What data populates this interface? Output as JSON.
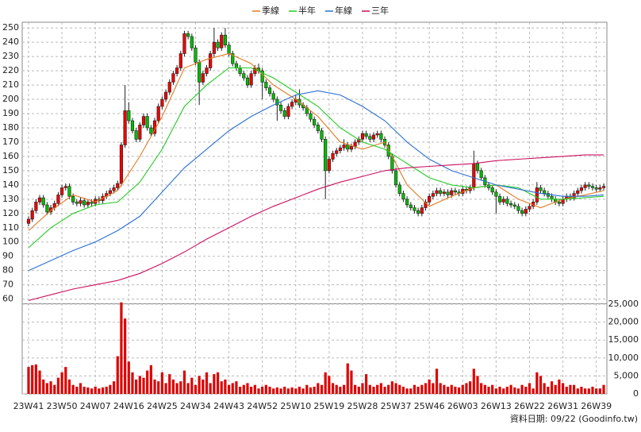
{
  "chart_data": {
    "type": "candlestick",
    "grid": true,
    "up_color": "#ee0000",
    "down_color": "#00bb00",
    "categories": [
      "23W41",
      null,
      null,
      null,
      null,
      null,
      null,
      null,
      null,
      "23W50",
      null,
      null,
      null,
      null,
      null,
      null,
      null,
      null,
      "24W07",
      null,
      null,
      null,
      null,
      null,
      null,
      null,
      null,
      "24W16",
      null,
      null,
      null,
      null,
      null,
      null,
      null,
      null,
      "24W25",
      null,
      null,
      null,
      null,
      null,
      null,
      null,
      null,
      "24W34",
      null,
      null,
      null,
      null,
      null,
      null,
      null,
      null,
      "24W43",
      null,
      null,
      null,
      null,
      null,
      null,
      null,
      null,
      "24W52",
      null,
      null,
      null,
      null,
      null,
      null,
      null,
      null,
      "25W10",
      null,
      null,
      null,
      null,
      null,
      null,
      null,
      null,
      "25W19",
      null,
      null,
      null,
      null,
      null,
      null,
      null,
      null,
      "25W28",
      null,
      null,
      null,
      null,
      null,
      null,
      null,
      null,
      "25W37",
      null,
      null,
      null,
      null,
      null,
      null,
      null,
      null,
      "25W46",
      null,
      null,
      null,
      null,
      null,
      null,
      null,
      null,
      "26W03",
      null,
      null,
      null,
      null,
      null,
      null,
      null,
      null,
      "26W13",
      null,
      null,
      null,
      null,
      null,
      null,
      null,
      null,
      "26W22",
      null,
      null,
      null,
      null,
      null,
      null,
      null,
      null,
      "26W31",
      null,
      null,
      null,
      null,
      null,
      null,
      null,
      null,
      "26W39",
      null,
      null
    ],
    "ohlc": [
      [
        113,
        118,
        111,
        116
      ],
      [
        116,
        124,
        114,
        122
      ],
      [
        122,
        130,
        120,
        128
      ],
      [
        128,
        133,
        126,
        131
      ],
      [
        131,
        133,
        124,
        126
      ],
      [
        126,
        128,
        119,
        121
      ],
      [
        121,
        126,
        119,
        124
      ],
      [
        124,
        129,
        122,
        127
      ],
      [
        127,
        135,
        125,
        133
      ],
      [
        133,
        140,
        131,
        138
      ],
      [
        138,
        141,
        136,
        139
      ],
      [
        139,
        141,
        130,
        132
      ],
      [
        132,
        134,
        126,
        128
      ],
      [
        128,
        130,
        125,
        127
      ],
      [
        127,
        131,
        125,
        129
      ],
      [
        129,
        131,
        124,
        126
      ],
      [
        126,
        130,
        124,
        128
      ],
      [
        128,
        130,
        125,
        127
      ],
      [
        127,
        132,
        125,
        130
      ],
      [
        130,
        132,
        127,
        129
      ],
      [
        129,
        134,
        127,
        132
      ],
      [
        132,
        136,
        130,
        134
      ],
      [
        134,
        138,
        132,
        136
      ],
      [
        136,
        140,
        134,
        138
      ],
      [
        138,
        143,
        136,
        141
      ],
      [
        141,
        170,
        139,
        168
      ],
      [
        168,
        210,
        166,
        192
      ],
      [
        192,
        198,
        183,
        185
      ],
      [
        185,
        187,
        176,
        178
      ],
      [
        178,
        180,
        170,
        172
      ],
      [
        172,
        184,
        170,
        182
      ],
      [
        182,
        190,
        180,
        188
      ],
      [
        188,
        190,
        178,
        180
      ],
      [
        180,
        182,
        174,
        176
      ],
      [
        176,
        187,
        174,
        185
      ],
      [
        185,
        197,
        183,
        195
      ],
      [
        195,
        202,
        193,
        200
      ],
      [
        200,
        207,
        198,
        205
      ],
      [
        205,
        214,
        203,
        212
      ],
      [
        212,
        220,
        210,
        218
      ],
      [
        218,
        224,
        216,
        222
      ],
      [
        222,
        234,
        220,
        232
      ],
      [
        232,
        248,
        230,
        246
      ],
      [
        246,
        248,
        242,
        244
      ],
      [
        244,
        246,
        234,
        236
      ],
      [
        236,
        238,
        224,
        226
      ],
      [
        226,
        228,
        196,
        212
      ],
      [
        212,
        220,
        210,
        218
      ],
      [
        218,
        224,
        216,
        222
      ],
      [
        222,
        234,
        220,
        232
      ],
      [
        232,
        250,
        230,
        240
      ],
      [
        240,
        242,
        234,
        236
      ],
      [
        236,
        247,
        234,
        245
      ],
      [
        245,
        250,
        236,
        238
      ],
      [
        238,
        240,
        230,
        232
      ],
      [
        232,
        234,
        223,
        225
      ],
      [
        225,
        227,
        220,
        222
      ],
      [
        222,
        224,
        216,
        218
      ],
      [
        218,
        220,
        213,
        215
      ],
      [
        215,
        217,
        208,
        210
      ],
      [
        210,
        220,
        208,
        218
      ],
      [
        218,
        224,
        216,
        222
      ],
      [
        222,
        225,
        218,
        220
      ],
      [
        220,
        222,
        200,
        212
      ],
      [
        212,
        214,
        206,
        208
      ],
      [
        208,
        210,
        202,
        204
      ],
      [
        204,
        206,
        198,
        200
      ],
      [
        200,
        202,
        185,
        196
      ],
      [
        196,
        198,
        190,
        192
      ],
      [
        192,
        194,
        186,
        188
      ],
      [
        188,
        197,
        186,
        195
      ],
      [
        195,
        200,
        193,
        198
      ],
      [
        198,
        203,
        196,
        200
      ],
      [
        200,
        207,
        194,
        196
      ],
      [
        196,
        198,
        192,
        194
      ],
      [
        194,
        196,
        188,
        190
      ],
      [
        190,
        192,
        184,
        186
      ],
      [
        186,
        188,
        180,
        182
      ],
      [
        182,
        184,
        176,
        178
      ],
      [
        178,
        180,
        170,
        172
      ],
      [
        172,
        174,
        130,
        150
      ],
      [
        150,
        160,
        148,
        158
      ],
      [
        158,
        164,
        156,
        162
      ],
      [
        162,
        166,
        160,
        164
      ],
      [
        164,
        168,
        162,
        166
      ],
      [
        166,
        172,
        164,
        168
      ],
      [
        168,
        170,
        163,
        165
      ],
      [
        165,
        169,
        163,
        167
      ],
      [
        167,
        172,
        165,
        170
      ],
      [
        170,
        174,
        168,
        172
      ],
      [
        172,
        178,
        170,
        176
      ],
      [
        176,
        178,
        172,
        174
      ],
      [
        174,
        176,
        170,
        172
      ],
      [
        172,
        177,
        170,
        175
      ],
      [
        175,
        178,
        173,
        176
      ],
      [
        176,
        178,
        170,
        172
      ],
      [
        172,
        174,
        166,
        168
      ],
      [
        168,
        170,
        158,
        160
      ],
      [
        160,
        162,
        148,
        150
      ],
      [
        150,
        152,
        138,
        140
      ],
      [
        140,
        142,
        132,
        134
      ],
      [
        134,
        136,
        128,
        130
      ],
      [
        130,
        132,
        124,
        126
      ],
      [
        126,
        128,
        122,
        124
      ],
      [
        124,
        126,
        120,
        122
      ],
      [
        122,
        124,
        118,
        120
      ],
      [
        120,
        126,
        118,
        124
      ],
      [
        124,
        130,
        122,
        128
      ],
      [
        128,
        134,
        126,
        132
      ],
      [
        132,
        136,
        130,
        134
      ],
      [
        134,
        138,
        132,
        136
      ],
      [
        136,
        138,
        132,
        134
      ],
      [
        134,
        137,
        132,
        135
      ],
      [
        135,
        137,
        131,
        133
      ],
      [
        133,
        138,
        131,
        136
      ],
      [
        136,
        138,
        133,
        135
      ],
      [
        135,
        137,
        132,
        134
      ],
      [
        134,
        139,
        132,
        137
      ],
      [
        137,
        139,
        134,
        136
      ],
      [
        136,
        140,
        134,
        138
      ],
      [
        138,
        164,
        136,
        155
      ],
      [
        155,
        157,
        148,
        150
      ],
      [
        150,
        152,
        143,
        145
      ],
      [
        145,
        147,
        138,
        140
      ],
      [
        140,
        142,
        136,
        138
      ],
      [
        138,
        140,
        133,
        135
      ],
      [
        135,
        137,
        120,
        132
      ],
      [
        132,
        134,
        126,
        128
      ],
      [
        128,
        132,
        126,
        130
      ],
      [
        130,
        132,
        125,
        127
      ],
      [
        127,
        129,
        124,
        126
      ],
      [
        126,
        128,
        123,
        125
      ],
      [
        125,
        127,
        120,
        122
      ],
      [
        122,
        124,
        118,
        120
      ],
      [
        120,
        125,
        118,
        123
      ],
      [
        123,
        127,
        121,
        125
      ],
      [
        125,
        130,
        123,
        128
      ],
      [
        128,
        142,
        126,
        138
      ],
      [
        138,
        140,
        134,
        136
      ],
      [
        136,
        138,
        132,
        134
      ],
      [
        134,
        136,
        130,
        132
      ],
      [
        132,
        134,
        128,
        130
      ],
      [
        130,
        132,
        126,
        128
      ],
      [
        128,
        130,
        125,
        127
      ],
      [
        127,
        132,
        125,
        130
      ],
      [
        130,
        134,
        128,
        132
      ],
      [
        132,
        134,
        129,
        131
      ],
      [
        131,
        136,
        129,
        134
      ],
      [
        134,
        138,
        132,
        136
      ],
      [
        136,
        140,
        134,
        138
      ],
      [
        138,
        142,
        136,
        140
      ],
      [
        140,
        142,
        137,
        139
      ],
      [
        139,
        141,
        136,
        138
      ],
      [
        138,
        140,
        135,
        137
      ],
      [
        137,
        140,
        135,
        138
      ],
      [
        138,
        141,
        136,
        139
      ]
    ],
    "ylim": [
      57,
      254
    ],
    "yticks": [
      60,
      70,
      80,
      90,
      100,
      110,
      120,
      130,
      140,
      150,
      160,
      170,
      180,
      190,
      200,
      210,
      220,
      230,
      240,
      250
    ],
    "volume": {
      "axis": "y2",
      "color": "#dd0000",
      "values": [
        7500,
        8000,
        8200,
        6500,
        4000,
        3000,
        3500,
        2500,
        4500,
        6000,
        7500,
        4000,
        2500,
        2000,
        3000,
        2000,
        1800,
        1500,
        2000,
        1500,
        1800,
        2000,
        2500,
        3500,
        10500,
        25500,
        21000,
        9000,
        6000,
        4000,
        5000,
        4500,
        6500,
        8000,
        4000,
        3500,
        6000,
        3000,
        5500,
        4000,
        3000,
        3500,
        6500,
        3000,
        4500,
        2500,
        5000,
        4000,
        6000,
        3000,
        5500,
        6000,
        3500,
        4000,
        2500,
        3000,
        3500,
        2000,
        2500,
        3000,
        2000,
        2500,
        1500,
        2000,
        2500,
        2000,
        1500,
        1800,
        1500,
        2000,
        1500,
        1800,
        1500,
        2000,
        1500,
        2500,
        1800,
        2000,
        3000,
        2500,
        6000,
        5000,
        3000,
        2500,
        2000,
        2500,
        8500,
        6500,
        2500,
        2000,
        3000,
        5500,
        2500,
        2000,
        2500,
        3000,
        2000,
        2500,
        3500,
        3000,
        2500,
        2000,
        1500,
        1500,
        2500,
        2000,
        2500,
        3000,
        4000,
        3000,
        7000,
        3000,
        2500,
        2000,
        2500,
        2000,
        1800,
        2500,
        3000,
        3500,
        7000,
        5000,
        3000,
        2500,
        2000,
        2500,
        1500,
        2000,
        1500,
        2000,
        2500,
        1800,
        1500,
        2500,
        2000,
        3000,
        1500,
        6000,
        5000,
        3000,
        2000,
        3500,
        2500,
        4000,
        3000,
        2000,
        2500,
        2500,
        1500,
        2000,
        1500,
        1500,
        2000,
        1500,
        1500,
        2500
      ]
    },
    "y2lim": [
      0,
      25000
    ],
    "y2ticks": [
      0,
      {
        "value": 5000,
        "label": "5,000"
      },
      {
        "value": 10000,
        "label": "10,000"
      },
      {
        "value": 15000,
        "label": "15,000"
      },
      {
        "value": 20000,
        "label": "20,000"
      },
      {
        "value": 25000,
        "label": "25,000"
      }
    ],
    "series": [
      {
        "name": "季線",
        "color": "#e07a20",
        "x": [
          0,
          6,
          12,
          18,
          24,
          30,
          36,
          42,
          48,
          54,
          60,
          66,
          72,
          78,
          84,
          90,
          96,
          102,
          108,
          114,
          120,
          126,
          132,
          138,
          144,
          150,
          155
        ],
        "values": [
          108,
          122,
          133,
          128,
          136,
          160,
          188,
          222,
          228,
          232,
          225,
          210,
          200,
          188,
          170,
          165,
          170,
          140,
          125,
          132,
          138,
          140,
          130,
          124,
          130,
          133,
          136
        ]
      },
      {
        "name": "半年",
        "color": "#22cc22",
        "x": [
          0,
          6,
          12,
          18,
          24,
          30,
          36,
          42,
          48,
          54,
          60,
          66,
          72,
          78,
          84,
          90,
          96,
          102,
          108,
          114,
          120,
          126,
          132,
          138,
          144,
          150,
          155
        ],
        "values": [
          96,
          110,
          120,
          126,
          128,
          142,
          165,
          195,
          210,
          222,
          222,
          215,
          205,
          195,
          180,
          170,
          165,
          155,
          145,
          140,
          138,
          140,
          138,
          130,
          130,
          131,
          132
        ]
      },
      {
        "name": "年線",
        "color": "#2a6fd6",
        "x": [
          0,
          6,
          12,
          18,
          24,
          30,
          36,
          42,
          48,
          54,
          60,
          66,
          72,
          78,
          84,
          90,
          96,
          102,
          108,
          114,
          120,
          126,
          132,
          138,
          144,
          150,
          155
        ],
        "values": [
          80,
          87,
          94,
          100,
          108,
          118,
          135,
          152,
          165,
          178,
          188,
          196,
          203,
          206,
          203,
          195,
          185,
          170,
          158,
          150,
          145,
          140,
          137,
          134,
          132,
          132,
          133
        ]
      },
      {
        "name": "三年",
        "color": "#cc1060",
        "x": [
          0,
          6,
          12,
          18,
          24,
          30,
          36,
          42,
          48,
          54,
          60,
          66,
          72,
          78,
          84,
          90,
          96,
          102,
          108,
          114,
          120,
          126,
          132,
          138,
          144,
          150,
          155
        ],
        "values": [
          59,
          63,
          67,
          70,
          73,
          78,
          85,
          93,
          102,
          110,
          118,
          125,
          131,
          137,
          142,
          146,
          150,
          152,
          153,
          154,
          155,
          157,
          158,
          159,
          160,
          161,
          161
        ]
      }
    ],
    "footer": "資料日期: 09/22 (Goodinfo.tw)"
  }
}
